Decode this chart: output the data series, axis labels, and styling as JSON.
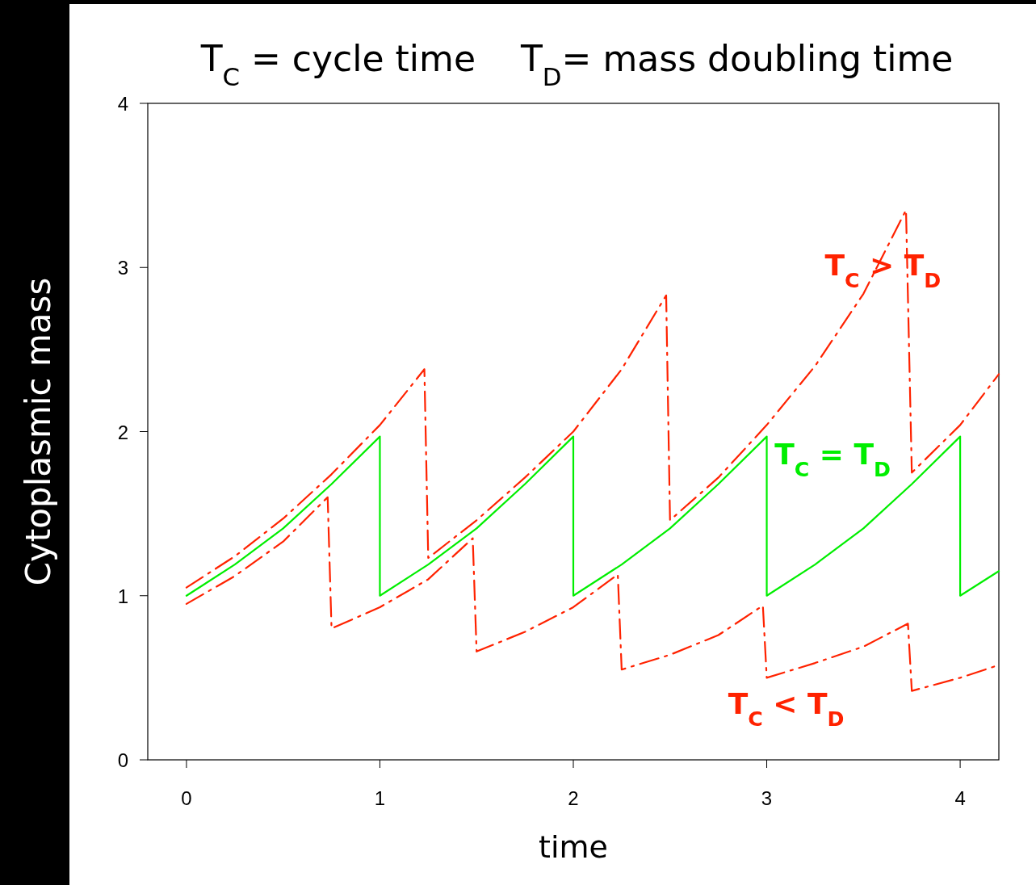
{
  "chart_data": {
    "type": "line",
    "title": "T$_{C}$ = cycle time    T$_{D}$= mass doubling time",
    "xlabel": "time",
    "ylabel": "Cytoplasmic mass",
    "xlim": [
      -0.2,
      4.2
    ],
    "ylim": [
      0,
      4
    ],
    "xticks": [
      0,
      1,
      2,
      3,
      4
    ],
    "yticks": [
      0,
      1,
      2,
      3,
      4
    ],
    "grid": false,
    "marker": "none",
    "series": [
      {
        "name": "T$_{C}$ > T$_{D}$",
        "color": "#ff2200",
        "line_style": "dashed",
        "x": [
          0,
          0.25,
          0.5,
          0.75,
          1.0,
          1.23,
          1.25,
          1.5,
          1.75,
          2.0,
          2.25,
          2.48,
          2.5,
          2.75,
          3.0,
          3.25,
          3.5,
          3.72,
          3.75,
          4.0,
          4.2
        ],
        "values": [
          1.05,
          1.24,
          1.47,
          1.74,
          2.04,
          2.38,
          1.23,
          1.46,
          1.72,
          2.0,
          2.38,
          2.83,
          1.46,
          1.72,
          2.04,
          2.4,
          2.84,
          3.35,
          1.75,
          2.04,
          2.35
        ]
      },
      {
        "name": "T$_{C}$ = T$_{D}$",
        "color": "#00ee00",
        "line_style": "solid",
        "x": [
          0,
          0.25,
          0.5,
          0.75,
          1,
          1,
          1.25,
          1.5,
          1.75,
          2,
          2,
          2.25,
          2.5,
          2.75,
          3,
          3,
          3.25,
          3.5,
          3.75,
          4,
          4,
          4.2
        ],
        "values": [
          1,
          1.19,
          1.41,
          1.68,
          1.97,
          1,
          1.19,
          1.41,
          1.68,
          1.97,
          1,
          1.19,
          1.41,
          1.68,
          1.97,
          1,
          1.19,
          1.41,
          1.68,
          1.97,
          1,
          1.15
        ]
      },
      {
        "name": "T$_{C}$ < T$_{D}$",
        "color": "#ff2200",
        "line_style": "dashed",
        "x": [
          0,
          0.25,
          0.5,
          0.73,
          0.75,
          1.0,
          1.25,
          1.48,
          1.5,
          1.75,
          2.0,
          2.23,
          2.25,
          2.5,
          2.75,
          2.98,
          3.0,
          3.25,
          3.5,
          3.73,
          3.75,
          4.0,
          4.18
        ],
        "values": [
          0.95,
          1.12,
          1.33,
          1.6,
          0.8,
          0.93,
          1.1,
          1.35,
          0.66,
          0.78,
          0.93,
          1.13,
          0.55,
          0.64,
          0.76,
          0.94,
          0.5,
          0.59,
          0.69,
          0.83,
          0.42,
          0.5,
          0.57
        ]
      }
    ]
  }
}
